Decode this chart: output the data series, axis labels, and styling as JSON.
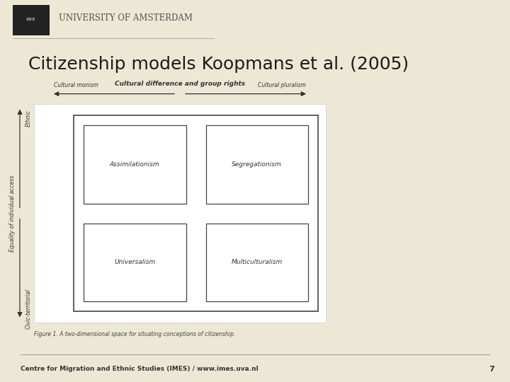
{
  "title": "Citizenship models Koopmans et al. (2005)",
  "title_fontsize": 18,
  "title_color": "#1a1a1a",
  "background_color": "#ede8d5",
  "header_bg": "#ffffff",
  "diagram_bg": "#ffffff",
  "footer_text": "Centre for Migration and Ethnic Studies (IMES) / www.imes.uva.nl",
  "footer_page": "7",
  "top_label": "Cultural difference and group rights",
  "left_label": "Cultural monism",
  "right_label": "Cultural pluralism",
  "y_axis_label": "Equality of individual access",
  "y_top_label": "Ethnic",
  "y_bottom_label": "Civic-territorial",
  "box_labels": [
    "Assimilationism",
    "Segregationism",
    "Universalism",
    "Multiculturalism"
  ],
  "figure_caption": "Figure 1. A two-dimensional space for situating conceptions of citizenship.",
  "uva_text": "UNIVERSITY OF AMSTERDAM"
}
